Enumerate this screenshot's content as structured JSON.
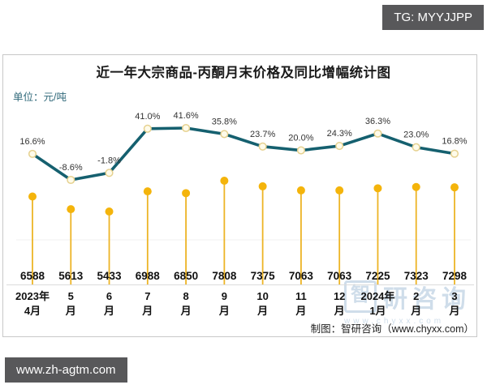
{
  "badges": {
    "top_right": "TG: MYYJJPP",
    "bottom_left": "www.zh-agtm.com"
  },
  "chart": {
    "title": "近一年大宗商品-丙酮月末价格及同比增幅统计图",
    "unit_label": "单位：元/吨",
    "source_note": "制图：智研咨询（www.chyxx.com）",
    "watermark": {
      "logo_char": "智",
      "text": "研咨询",
      "url": "www.chyxx.com"
    }
  },
  "chart_data": {
    "type": "combo",
    "title": "近一年大宗商品-丙酮月末价格及同比增幅统计图",
    "categories": [
      "2023年4月",
      "5月",
      "6月",
      "7月",
      "8月",
      "9月",
      "10月",
      "11月",
      "12月",
      "2024年1月",
      "2月",
      "3月"
    ],
    "category_display": [
      [
        "2023年",
        "4月"
      ],
      [
        "5",
        "月"
      ],
      [
        "6",
        "月"
      ],
      [
        "7",
        "月"
      ],
      [
        "8",
        "月"
      ],
      [
        "9",
        "月"
      ],
      [
        "10",
        "月"
      ],
      [
        "11",
        "月"
      ],
      [
        "12",
        "月"
      ],
      [
        "2024年",
        "1月"
      ],
      [
        "2",
        "月"
      ],
      [
        "3",
        "月"
      ]
    ],
    "series": [
      {
        "name": "丙酮月末价格",
        "unit": "元/吨",
        "chart_type": "lollipop",
        "color": "#F4B40B",
        "values": [
          6588,
          5613,
          5433,
          6988,
          6850,
          7808,
          7375,
          7063,
          7063,
          7225,
          7323,
          7298
        ]
      },
      {
        "name": "同比增幅",
        "unit": "%",
        "chart_type": "line",
        "color": "#15606F",
        "values": [
          16.6,
          -8.6,
          -1.8,
          41.0,
          41.6,
          35.8,
          23.7,
          20.0,
          24.3,
          36.3,
          23.0,
          16.8
        ]
      }
    ],
    "line_value_labels": [
      "16.6%",
      "-8.6%",
      "-1.8%",
      "41.0%",
      "41.6%",
      "35.8%",
      "23.7%",
      "20.0%",
      "24.3%",
      "36.3%",
      "23.0%",
      "16.8%"
    ],
    "price_value_labels": [
      "6588",
      "5613",
      "5433",
      "6988",
      "6850",
      "7808",
      "7375",
      "7063",
      "7063",
      "7225",
      "7323",
      "7298"
    ],
    "xlabel": "",
    "ylabel": "元/吨",
    "y2lim": [
      -10,
      45
    ],
    "price_range_shown": [
      5433,
      7808
    ],
    "grid": "off",
    "legend": "none"
  },
  "colors": {
    "line": "#15606F",
    "marker_fill": "#FEFBEA",
    "marker_stroke": "#E6D18F",
    "lollipop": "#F4B40B",
    "stem": "#EDB426",
    "axis": "#DCDCDC",
    "gridline": "#F2F2F2",
    "border": "#C8C8C8",
    "badge_bg": "#58585A",
    "badge_text": "#FFFFFF",
    "unit_text": "#2F6879",
    "watermark": "#A9C3DA",
    "pct_label": "#333333",
    "value_label": "#111111"
  }
}
